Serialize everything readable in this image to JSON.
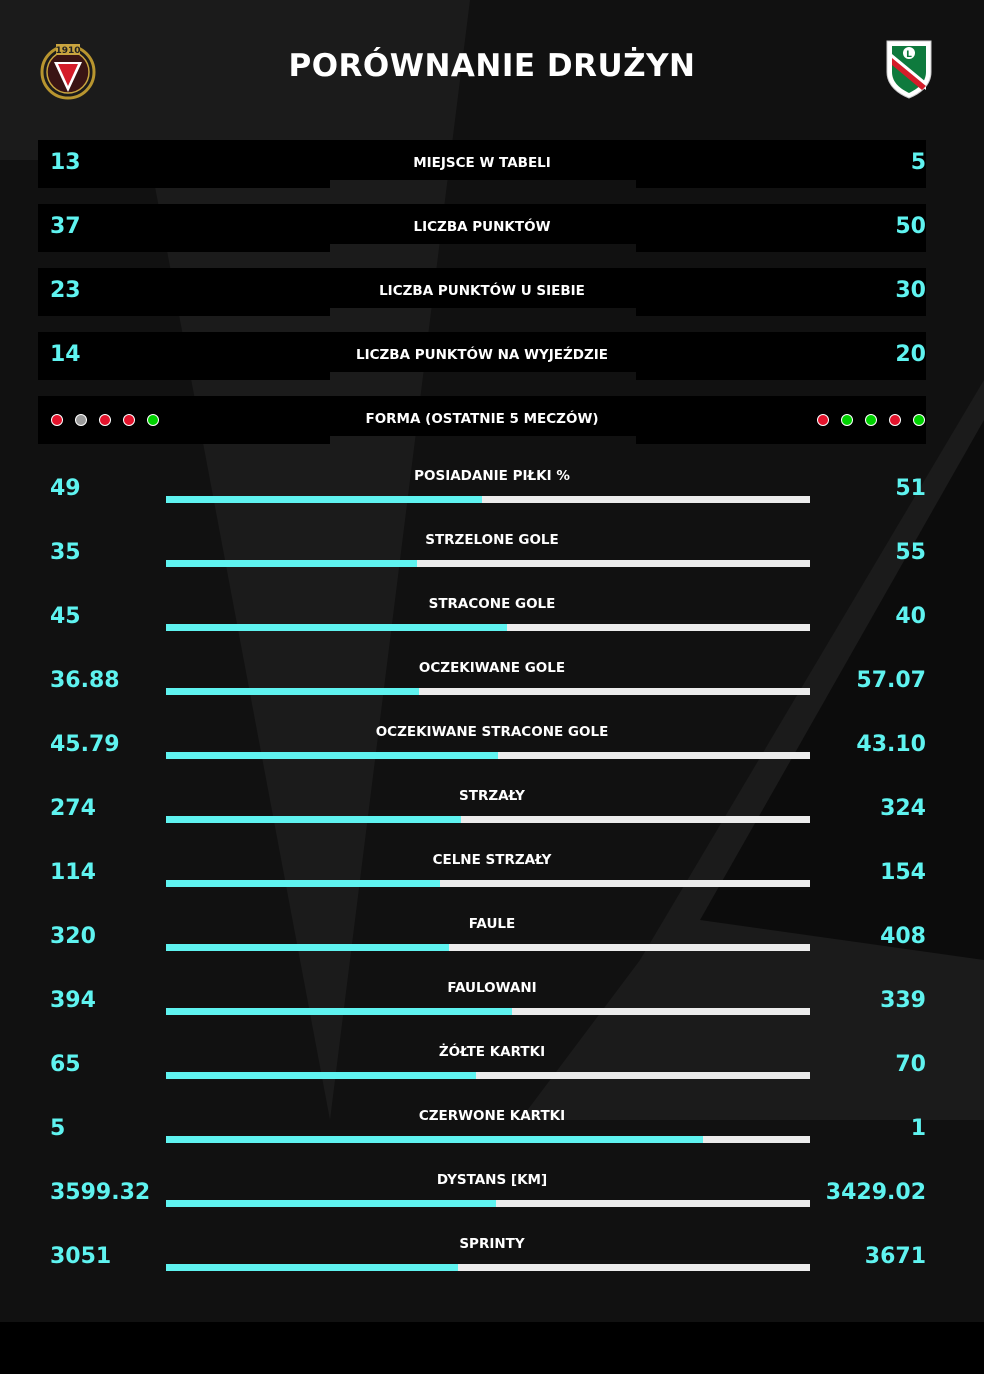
{
  "title": "PORÓWNANIE DRUŻYN",
  "colors": {
    "accent": "#5ff3f0",
    "form_win": "#00d100",
    "form_loss": "#e3132c",
    "form_draw": "#9a9a9a"
  },
  "home_crest": {
    "icon": "widzew-crest-icon",
    "text": "1910"
  },
  "away_crest": {
    "icon": "legia-crest-icon",
    "text": "L"
  },
  "info_rows": [
    {
      "label": "MIEJSCE W TABELI",
      "home": "13",
      "away": "5"
    },
    {
      "label": "LICZBA PUNKTÓW",
      "home": "37",
      "away": "50"
    },
    {
      "label": "LICZBA PUNKTÓW U SIEBIE",
      "home": "23",
      "away": "30"
    },
    {
      "label": "LICZBA PUNKTÓW NA WYJEŹDZIE",
      "home": "14",
      "away": "20"
    }
  ],
  "form": {
    "label": "FORMA (OSTATNIE 5 MECZÓW)",
    "home": [
      "L",
      "D",
      "L",
      "L",
      "W"
    ],
    "away": [
      "L",
      "W",
      "W",
      "L",
      "W"
    ]
  },
  "stats": [
    {
      "label": "POSIADANIE PIŁKI %",
      "home": "49",
      "away": "51",
      "home_share": 0.49
    },
    {
      "label": "STRZELONE GOLE",
      "home": "35",
      "away": "55",
      "home_share": 0.389
    },
    {
      "label": "STRACONE GOLE",
      "home": "45",
      "away": "40",
      "home_share": 0.529
    },
    {
      "label": "OCZEKIWANE GOLE",
      "home": "36.88",
      "away": "57.07",
      "home_share": 0.3926
    },
    {
      "label": "OCZEKIWANE STRACONE GOLE",
      "home": "45.79",
      "away": "43.10",
      "home_share": 0.5151
    },
    {
      "label": "STRZAŁY",
      "home": "274",
      "away": "324",
      "home_share": 0.4582
    },
    {
      "label": "CELNE STRZAŁY",
      "home": "114",
      "away": "154",
      "home_share": 0.4254
    },
    {
      "label": "FAULE",
      "home": "320",
      "away": "408",
      "home_share": 0.4396
    },
    {
      "label": "FAULOWANI",
      "home": "394",
      "away": "339",
      "home_share": 0.5375
    },
    {
      "label": "ŻÓŁTE KARTKI",
      "home": "65",
      "away": "70",
      "home_share": 0.4815
    },
    {
      "label": "CZERWONE KARTKI",
      "home": "5",
      "away": "1",
      "home_share": 0.8333
    },
    {
      "label": "DYSTANS [KM]",
      "home": "3599.32",
      "away": "3429.02",
      "home_share": 0.5121
    },
    {
      "label": "SPRINTY",
      "home": "3051",
      "away": "3671",
      "home_share": 0.4539
    }
  ]
}
